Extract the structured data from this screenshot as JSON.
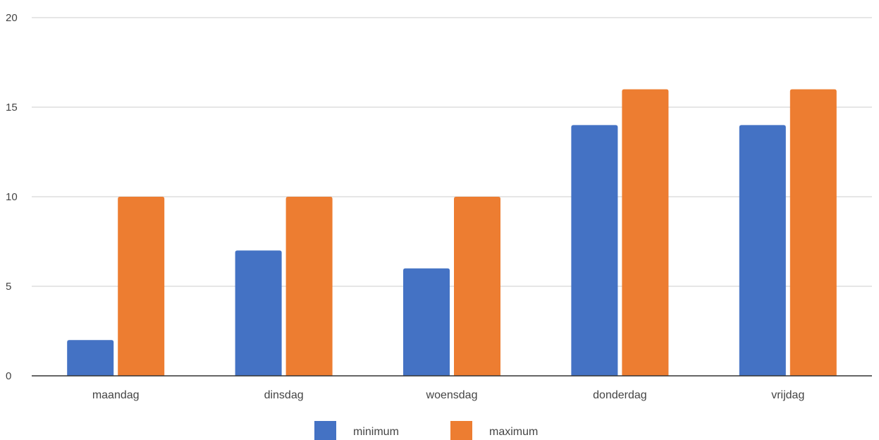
{
  "chart_data": {
    "type": "bar",
    "categories": [
      "maandag",
      "dinsdag",
      "woensdag",
      "donderdag",
      "vrijdag"
    ],
    "series": [
      {
        "name": "minimum",
        "values": [
          2,
          7,
          6,
          14,
          14
        ],
        "color": "#4472C4"
      },
      {
        "name": "maximum",
        "values": [
          10,
          10,
          10,
          16,
          16
        ],
        "color": "#ED7D31"
      }
    ],
    "yticks": [
      0,
      5,
      10,
      15,
      20
    ],
    "ylim": [
      0,
      20
    ],
    "grid": true,
    "legend_position": "bottom"
  }
}
